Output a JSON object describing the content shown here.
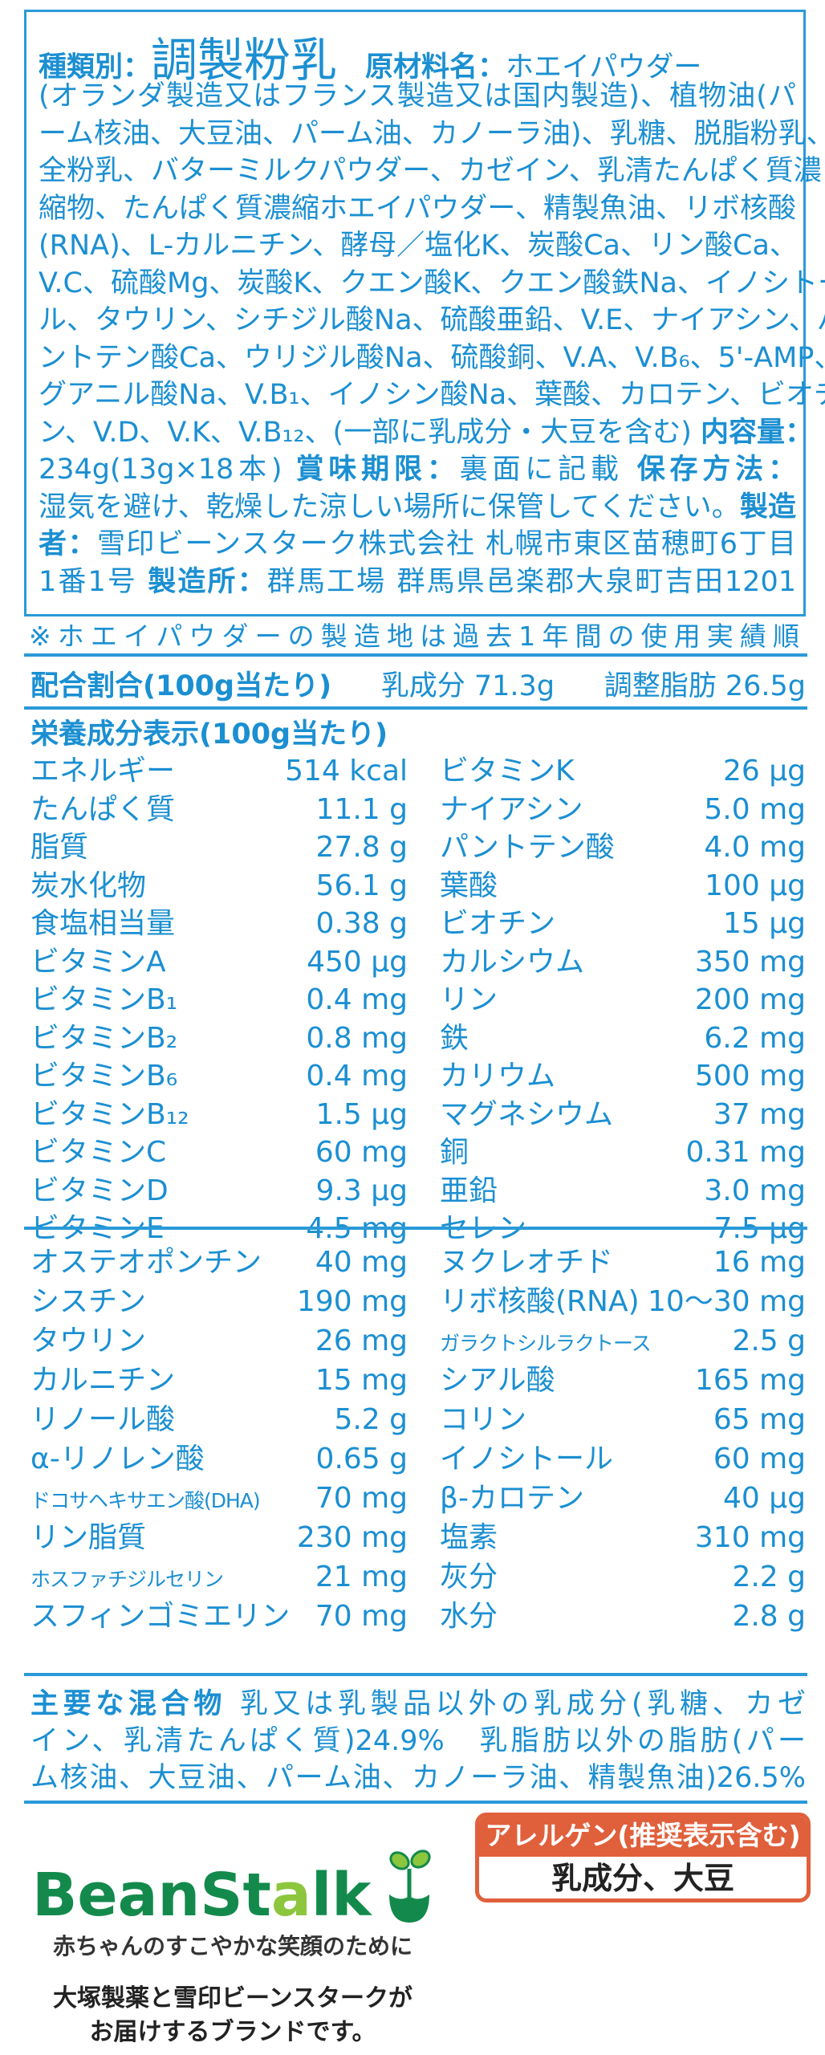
{
  "ingredients": {
    "lines": [
      [
        {
          "t": "種類別：",
          "b": true
        },
        {
          "t": "調製粉乳",
          "big": true
        },
        {
          "t": "　原材料名：",
          "b": true
        },
        {
          "t": "ホエイパウダー"
        }
      ],
      [
        {
          "t": "(オランダ製造又はフランス製造又は国内製造)、植物油(パ"
        }
      ],
      [
        {
          "t": "ーム核油、大豆油、パーム油、カノーラ油)、乳糖、脱脂粉乳、"
        }
      ],
      [
        {
          "t": "全粉乳、バターミルクパウダー、カゼイン、乳清たんぱく質濃"
        }
      ],
      [
        {
          "t": "縮物、たんぱく質濃縮ホエイパウダー、精製魚油、リボ核酸"
        }
      ],
      [
        {
          "t": "(RNA)、L-カルニチン、酵母／塩化K、炭酸Ca、リン酸Ca、"
        }
      ],
      [
        {
          "t": "V.C、硫酸Mg、炭酸K、クエン酸K、クエン酸鉄Na、イノシトー"
        }
      ],
      [
        {
          "t": "ル、タウリン、シチジル酸Na、硫酸亜鉛、V.E、ナイアシン、パ"
        }
      ],
      [
        {
          "t": "ントテン酸Ca、ウリジル酸Na、硫酸銅、V.A、V.B₆、5'-AMP、"
        }
      ],
      [
        {
          "t": "グアニル酸Na、V.B₁、イノシン酸Na、葉酸、カロテン、ビオチ"
        }
      ],
      [
        {
          "t": "ン、V.D、V.K、V.B₁₂、(一部に乳成分・大豆を含む) "
        },
        {
          "t": "内容量：",
          "b": true
        }
      ],
      [
        {
          "t": "234g(13g×18本) "
        },
        {
          "t": "賞味期限：",
          "b": true
        },
        {
          "t": "裏面に記載 "
        },
        {
          "t": "保存方法：",
          "b": true
        }
      ],
      [
        {
          "t": "湿気を避け、乾燥した涼しい場所に保管してください。"
        },
        {
          "t": "製造",
          "b": true
        }
      ],
      [
        {
          "t": "者：",
          "b": true
        },
        {
          "t": "雪印ビーンスターク株式会社 札幌市東区苗穂町6丁目"
        }
      ],
      [
        {
          "t": "1番1号 "
        },
        {
          "t": "製造所：",
          "b": true
        },
        {
          "t": "群馬工場 群馬県邑楽郡大泉町吉田1201"
        }
      ]
    ]
  },
  "note": "※ホエイパウダーの製造地は過去1年間の使用実績順",
  "ratio": {
    "label": "配合割合(100g当たり)",
    "milk": "乳成分 71.3g",
    "fat": "調整脂肪 26.5g"
  },
  "nutrition_title": "栄養成分表示(100g当たり)",
  "nutrition": [
    [
      "エネルギー",
      "514 kcal",
      "ビタミンK",
      "26 μg"
    ],
    [
      "たんぱく質",
      "11.1 g",
      "ナイアシン",
      "5.0 mg"
    ],
    [
      "脂質",
      "27.8 g",
      "パントテン酸",
      "4.0 mg"
    ],
    [
      "炭水化物",
      "56.1 g",
      "葉酸",
      "100 μg"
    ],
    [
      "食塩相当量",
      "0.38 g",
      "ビオチン",
      "15 μg"
    ],
    [
      "ビタミンA",
      "450 μg",
      "カルシウム",
      "350 mg"
    ],
    [
      "ビタミンB₁",
      "0.4 mg",
      "リン",
      "200 mg"
    ],
    [
      "ビタミンB₂",
      "0.8 mg",
      "鉄",
      "6.2 mg"
    ],
    [
      "ビタミンB₆",
      "0.4 mg",
      "カリウム",
      "500 mg"
    ],
    [
      "ビタミンB₁₂",
      "1.5 μg",
      "マグネシウム",
      "37 mg"
    ],
    [
      "ビタミンC",
      "60 mg",
      "銅",
      "0.31 mg"
    ],
    [
      "ビタミンD",
      "9.3 μg",
      "亜鉛",
      "3.0 mg"
    ],
    [
      "ビタミンE",
      "4.5 mg",
      "セレン",
      "7.5 μg"
    ]
  ],
  "nutrition_extra": [
    [
      "オステオポンチン",
      "40 mg",
      "ヌクレオチド",
      "16 mg"
    ],
    [
      "シスチン",
      "190 mg",
      "リボ核酸(RNA)",
      "10～30 mg"
    ],
    [
      "タウリン",
      "26 mg",
      "ガラクトシルラクトース",
      "2.5 g"
    ],
    [
      "カルニチン",
      "15 mg",
      "シアル酸",
      "165 mg"
    ],
    [
      "リノール酸",
      "5.2 g",
      "コリン",
      "65 mg"
    ],
    [
      "α-リノレン酸",
      "0.65 g",
      "イノシトール",
      "60 mg"
    ],
    [
      "ドコサヘキサエン酸(DHA)",
      "70 mg",
      "β-カロテン",
      "40 μg"
    ],
    [
      "リン脂質",
      "230 mg",
      "塩素",
      "310 mg"
    ],
    [
      "ホスファチジルセリン",
      "21 mg",
      "灰分",
      "2.2 g"
    ],
    [
      "スフィンゴミエリン",
      "70 mg",
      "水分",
      "2.8 g"
    ]
  ],
  "mixture": {
    "label": "主要な混合物",
    "lines": [
      "乳又は乳製品以外の乳成分(乳糖、カゼ",
      "イン、乳清たんぱく質)24.9%　乳脂肪以外の脂肪(パー",
      "ム核油、大豆油、パーム油、カノーラ油、精製魚油)26.5%"
    ]
  },
  "allergen": {
    "title": "アレルゲン(推奨表示含む)",
    "value": "乳成分、大豆"
  },
  "logo": {
    "text": "BeanStalk",
    "icon": "sprout-icon"
  },
  "tagline": "赤ちゃんのすこやかな笑顔のために",
  "brand_lines": [
    "大塚製薬と雪印ビーンスタークが",
    "お届けするブランドです。"
  ],
  "colors": {
    "text_blue": "#1b8fd2",
    "rule_blue": "#2a9ad8",
    "allergen": "#e0603c",
    "logo_green": "#138a4c",
    "logo_light": "#8cc63f"
  }
}
